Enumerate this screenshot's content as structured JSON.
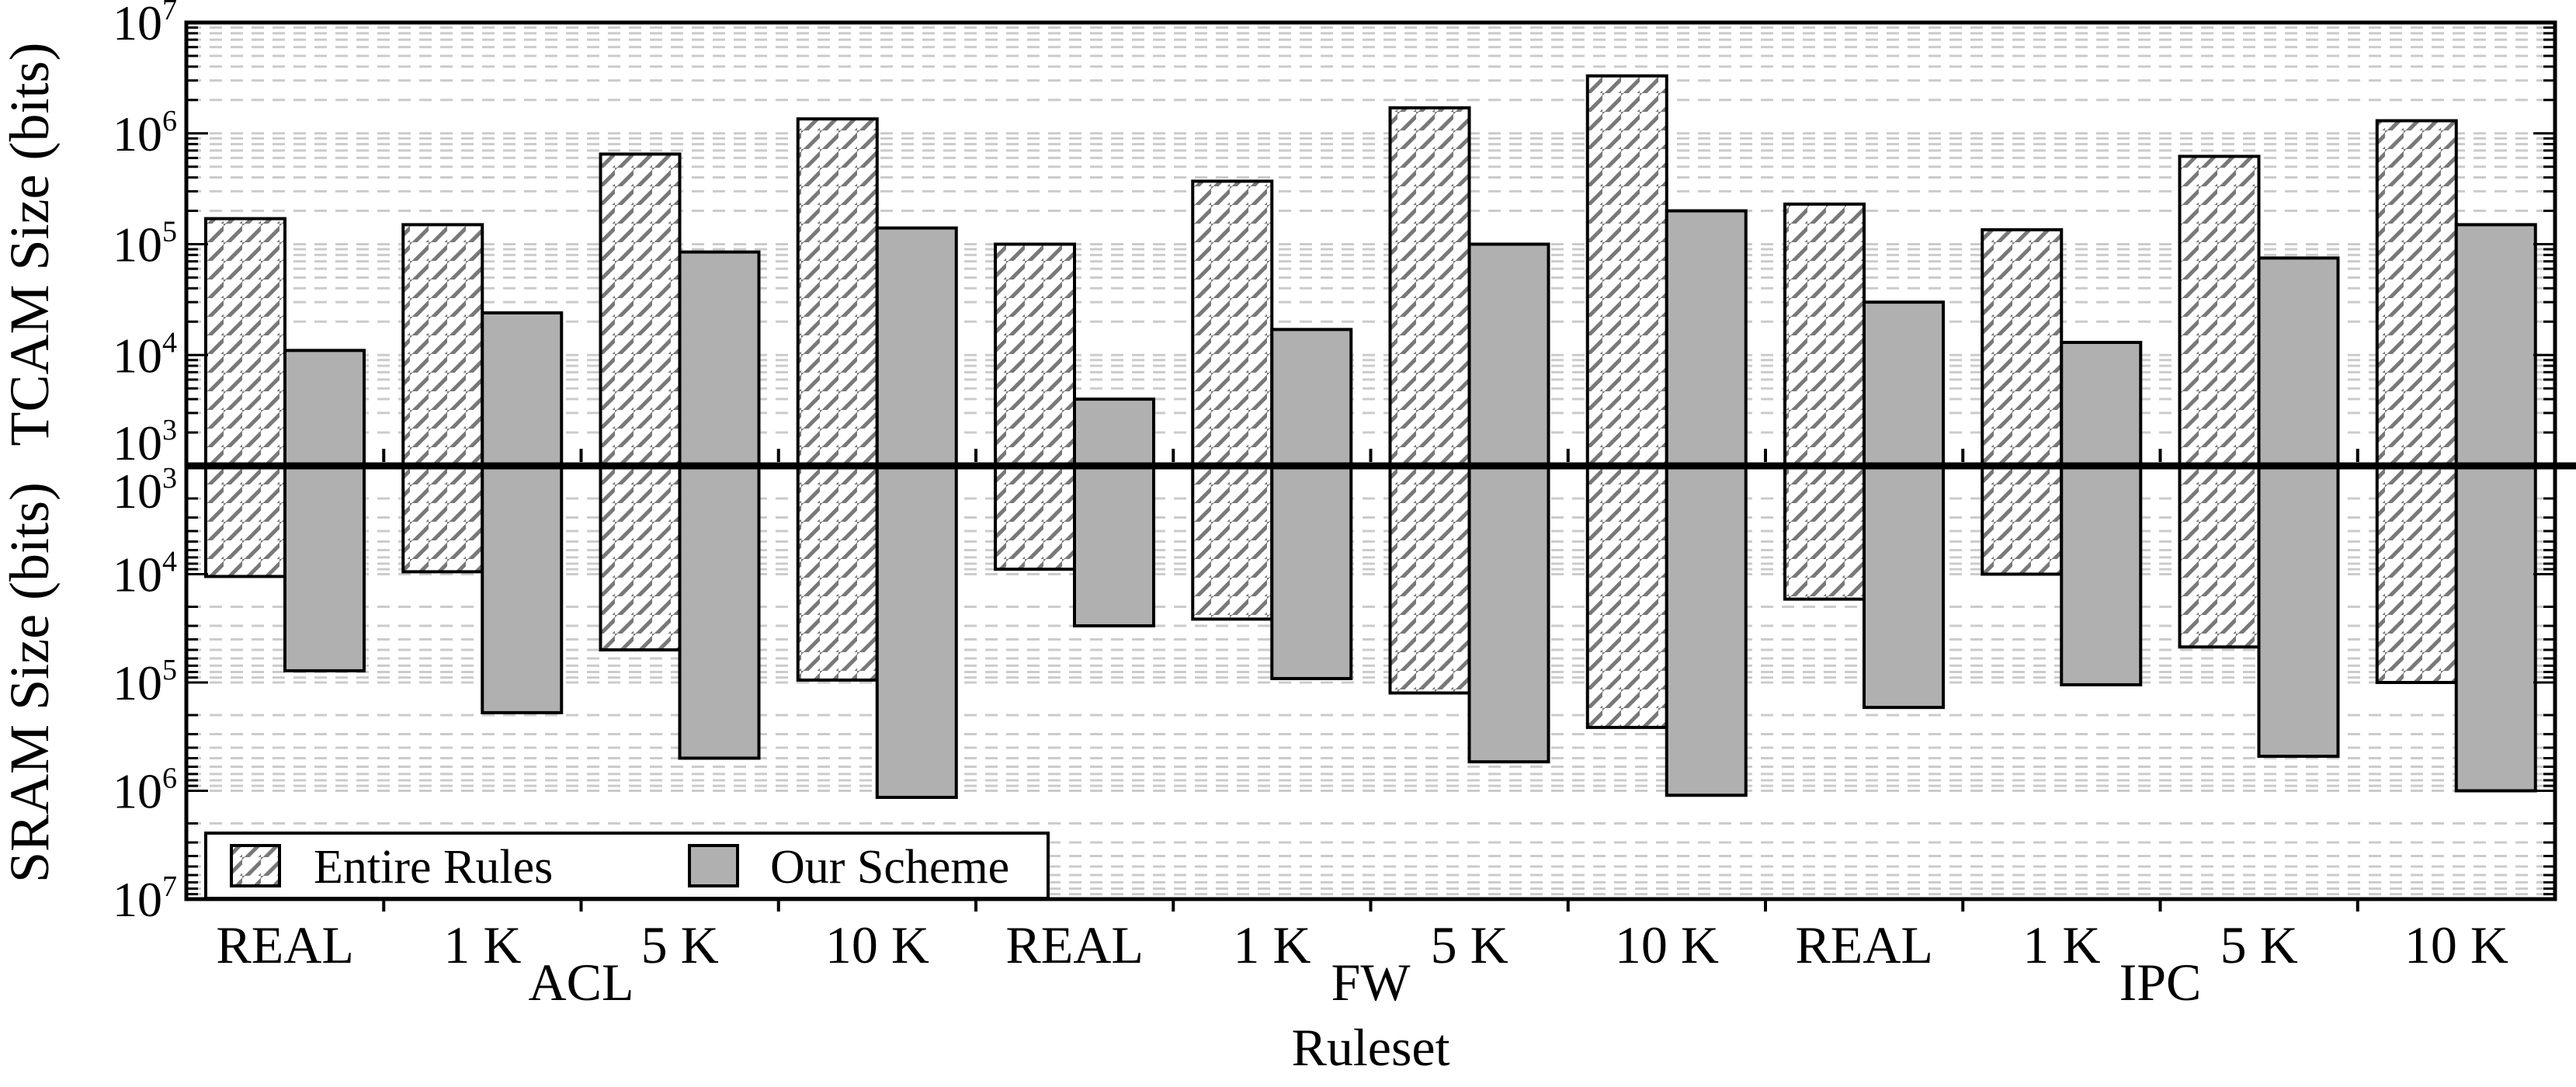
{
  "figure": {
    "y_axis_top_label": "TCAM Size (bits)",
    "y_axis_bottom_label": "SRAM Size (bits)",
    "x_axis_label": "Ruleset",
    "legend": {
      "entire_rules": "Entire Rules",
      "our_scheme": "Our Scheme"
    }
  },
  "chart_data": {
    "type": "bar",
    "subtype": "grouped-dual-log-axis-mirrored",
    "title": "",
    "xlabel": "Ruleset",
    "ylabel_top": "TCAM Size (bits)",
    "ylabel_bottom": "SRAM Size (bits)",
    "categories": [
      "REAL",
      "1 K",
      "5 K",
      "10 K",
      "REAL",
      "1 K",
      "5 K",
      "10 K",
      "REAL",
      "1 K",
      "5 K",
      "10 K"
    ],
    "sections": [
      {
        "label": "ACL",
        "group_indices": [
          0,
          3
        ]
      },
      {
        "label": "FW",
        "group_indices": [
          4,
          7
        ]
      },
      {
        "label": "IPC",
        "group_indices": [
          8,
          11
        ]
      }
    ],
    "series": [
      {
        "name": "Entire Rules",
        "style": "hatched",
        "tcam_bits": [
          170000,
          150000,
          650000,
          1350000,
          100000,
          370000,
          1700000,
          3300000,
          230000,
          135000,
          620000,
          1300000
        ],
        "sram_bits": [
          10500,
          9500,
          50000,
          95000,
          9000,
          26000,
          125000,
          260000,
          17000,
          10000,
          47000,
          100000
        ]
      },
      {
        "name": "Our Scheme",
        "style": "solid-gray",
        "tcam_bits": [
          11000,
          24000,
          85000,
          140000,
          4000,
          17000,
          100000,
          200000,
          30000,
          13000,
          75000,
          150000
        ],
        "sram_bits": [
          78000,
          190000,
          500000,
          1150000,
          30000,
          92000,
          540000,
          1100000,
          170000,
          105000,
          480000,
          1000000
        ]
      }
    ],
    "tcam_axis": {
      "min": 1000,
      "max": 10000000,
      "direction": "up",
      "tick_exponents": [
        7,
        6,
        5,
        4,
        3
      ],
      "scale": "log"
    },
    "sram_axis": {
      "min": 1000,
      "max": 10000000,
      "direction": "down",
      "tick_exponents": [
        3,
        4,
        5,
        6,
        7
      ],
      "scale": "log"
    },
    "grid": {
      "minor_dashed": true,
      "levels_per_decade": [
        1,
        2,
        3,
        4,
        5,
        6,
        7,
        8,
        9
      ]
    },
    "legend_position": "bottom-left",
    "colors": {
      "ink": "#000000",
      "bar_gray_fill": "#b0b0b0",
      "hatch_stroke": "#787878",
      "grid_dash": "#cbcbcb",
      "background": "#ffffff"
    }
  }
}
